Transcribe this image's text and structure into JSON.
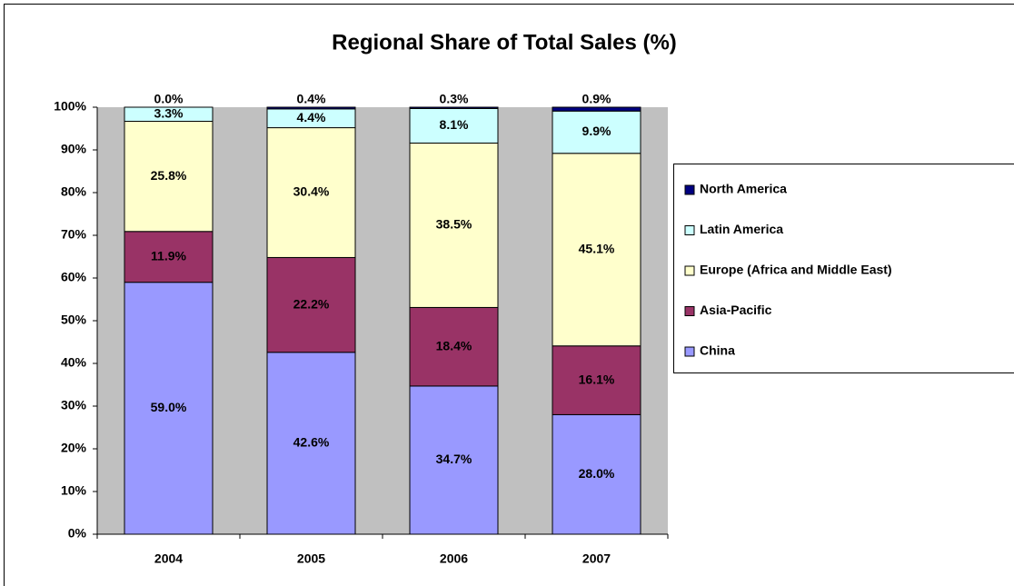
{
  "chart_data": {
    "type": "stacked_bar",
    "title": "Regional Share of Total Sales (%)",
    "categories": [
      "2004",
      "2005",
      "2006",
      "2007"
    ],
    "series": [
      {
        "name": "China",
        "color": "#9999ff",
        "values": [
          59.0,
          42.6,
          34.7,
          28.0
        ],
        "value_labels": [
          "59.0%",
          "42.6%",
          "34.7%",
          "28.0%"
        ]
      },
      {
        "name": "Asia-Pacific",
        "color": "#993366",
        "values": [
          11.9,
          22.2,
          18.4,
          16.1
        ],
        "value_labels": [
          "11.9%",
          "22.2%",
          "18.4%",
          "16.1%"
        ]
      },
      {
        "name": "Europe (Africa and Middle East)",
        "color": "#ffffcc",
        "values": [
          25.8,
          30.4,
          38.5,
          45.1
        ],
        "value_labels": [
          "25.8%",
          "30.4%",
          "38.5%",
          "45.1%"
        ]
      },
      {
        "name": "Latin America",
        "color": "#ccffff",
        "values": [
          3.3,
          4.4,
          8.1,
          9.9
        ],
        "value_labels": [
          "3.3%",
          "4.4%",
          "8.1%",
          "9.9%"
        ]
      },
      {
        "name": "North America",
        "color": "#000080",
        "values": [
          0.0,
          0.4,
          0.3,
          0.9
        ],
        "value_labels": [
          "0.0%",
          "0.4%",
          "0.3%",
          "0.9%"
        ]
      }
    ],
    "ylim": [
      0,
      100
    ],
    "yticks": [
      {
        "value": 0,
        "label": "0%"
      },
      {
        "value": 10,
        "label": "10%"
      },
      {
        "value": 20,
        "label": "20%"
      },
      {
        "value": 30,
        "label": "30%"
      },
      {
        "value": 40,
        "label": "40%"
      },
      {
        "value": 50,
        "label": "50%"
      },
      {
        "value": 60,
        "label": "60%"
      },
      {
        "value": 70,
        "label": "70%"
      },
      {
        "value": 80,
        "label": "80%"
      },
      {
        "value": 90,
        "label": "90%"
      },
      {
        "value": 100,
        "label": "100%"
      }
    ],
    "grid": false,
    "legend": "right"
  }
}
